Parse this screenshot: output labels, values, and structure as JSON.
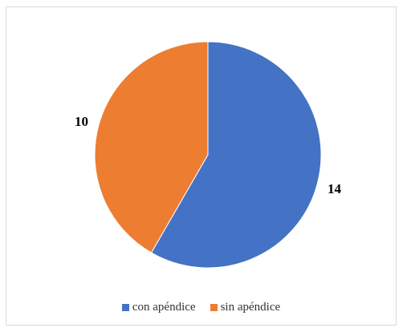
{
  "chart_data": {
    "type": "pie",
    "categories": [
      "con apéndice",
      "sin apéndice"
    ],
    "values": [
      14,
      10
    ],
    "data_labels": [
      "14",
      "10"
    ],
    "colors": [
      "#4472c4",
      "#ed7d31"
    ],
    "start_angle_deg": 0,
    "direction": "clockwise",
    "legend_position": "bottom"
  }
}
